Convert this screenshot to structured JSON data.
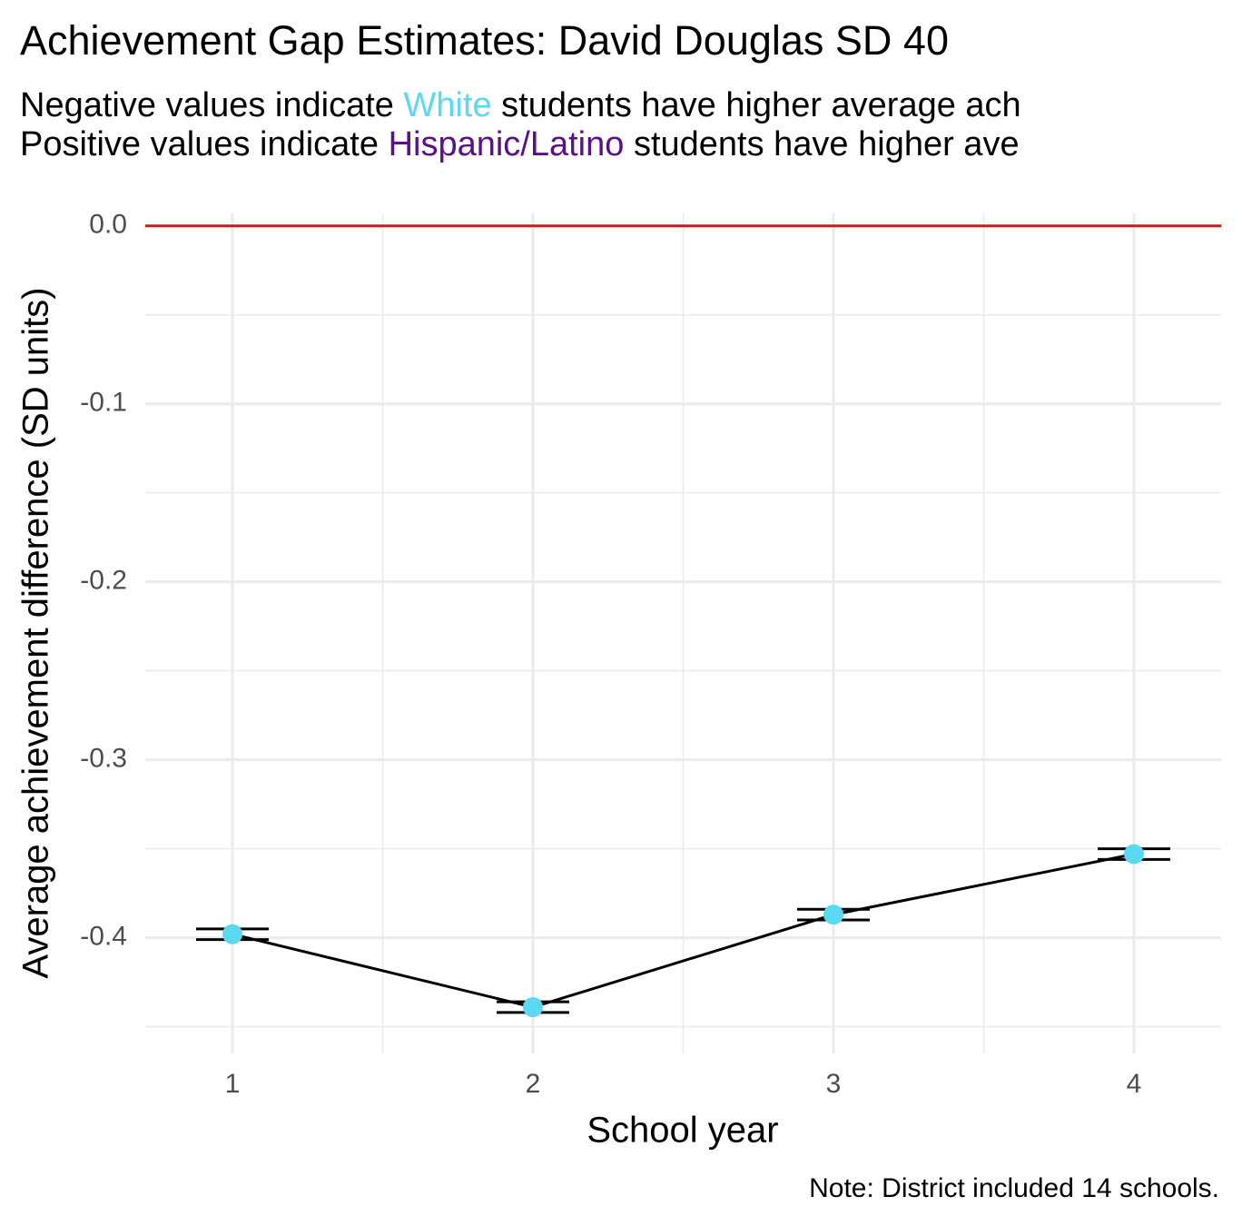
{
  "chart_data": {
    "type": "line",
    "title": "Achievement Gap Estimates: David Douglas SD 40",
    "subtitle": [
      [
        {
          "text": "Negative values indicate "
        },
        {
          "text": "White",
          "color": "#5bd8f2"
        },
        {
          "text": " students have higher average ach"
        }
      ],
      [
        {
          "text": "Positive values indicate "
        },
        {
          "text": "Hispanic/Latino",
          "color": "#5c0f8b"
        },
        {
          "text": " students have higher ave"
        }
      ]
    ],
    "x_label": "School year",
    "y_label": "Average achievement difference (SD units)",
    "note": "Note: District included 14 schools.",
    "x": [
      1,
      2,
      3,
      4
    ],
    "series": [
      {
        "values": [
          -0.398,
          -0.439,
          -0.387,
          -0.353
        ],
        "errors": [
          0.003,
          0.003,
          0.003,
          0.003
        ],
        "color": "#5bd8f2",
        "line_color": "#000000"
      }
    ],
    "xlim": [
      0.71,
      4.29
    ],
    "xticks": [
      1,
      2,
      3,
      4
    ],
    "x_minor_ticks": [
      1.5,
      2.5,
      3.5
    ],
    "ylim": [
      -0.465,
      0.007
    ],
    "yticks": [
      {
        "value": 0,
        "label": "0.0"
      },
      -0.1,
      -0.2,
      -0.3,
      -0.4
    ],
    "y_minor_ticks": [
      -0.45,
      -0.35,
      -0.25,
      -0.15,
      -0.05
    ],
    "reference_line": {
      "value": 0,
      "color": "#e8100c"
    },
    "grid": true
  }
}
